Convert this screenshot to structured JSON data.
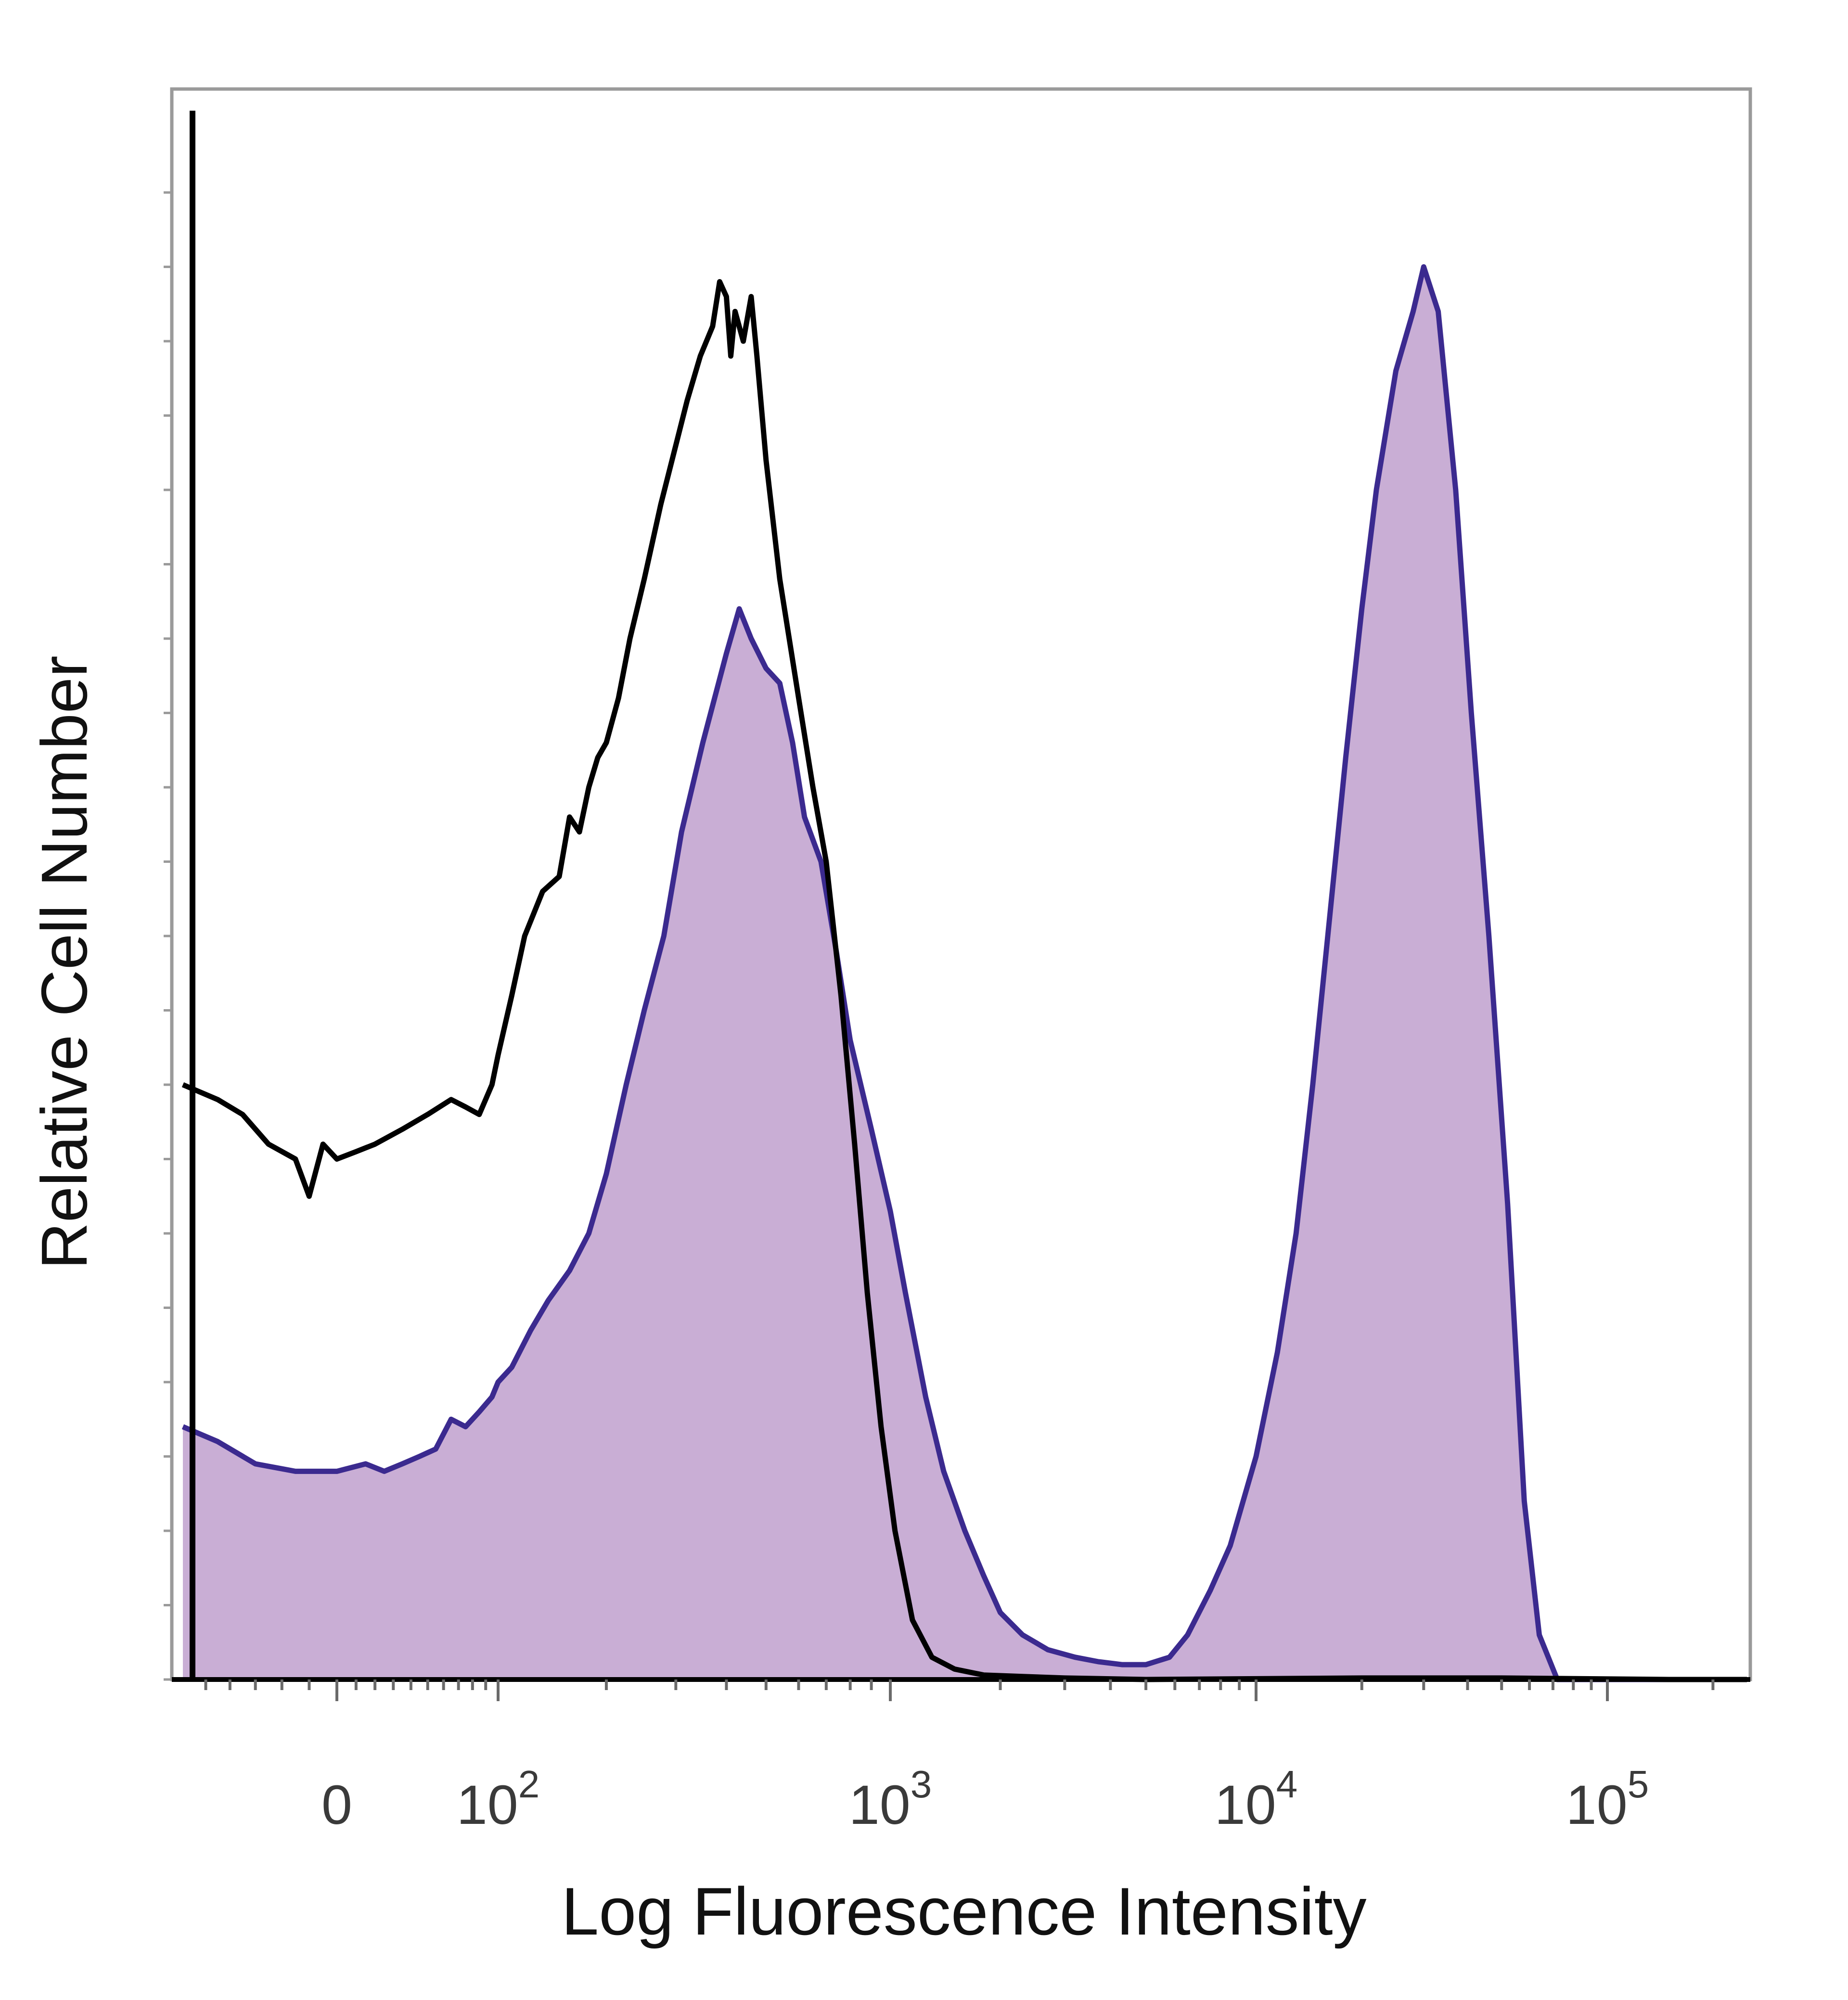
{
  "chart_data": {
    "type": "area",
    "title": "",
    "xlabel": "Log Fluorescence Intensity",
    "ylabel": "Relative Cell Number",
    "x_scale": "biexponential",
    "x_ticks": [
      {
        "value": 0,
        "base": "0",
        "exp": ""
      },
      {
        "value": 100,
        "base": "10",
        "exp": "2"
      },
      {
        "value": 1000,
        "base": "10",
        "exp": "3"
      },
      {
        "value": 10000,
        "base": "10",
        "exp": "4"
      },
      {
        "value": 100000,
        "base": "10",
        "exp": "5"
      }
    ],
    "ylim": [
      0,
      100
    ],
    "grid": false,
    "legend": "none",
    "series": [
      {
        "style": "filled",
        "fill_color": "#c9aed5",
        "line_color": "#3b2a8f",
        "points": [
          [
            -60,
            17
          ],
          [
            -45,
            16
          ],
          [
            -30,
            14.5
          ],
          [
            -15,
            14
          ],
          [
            0,
            14
          ],
          [
            15,
            14.5
          ],
          [
            25,
            14
          ],
          [
            35,
            14.5
          ],
          [
            45,
            15
          ],
          [
            55,
            15.5
          ],
          [
            65,
            17.5
          ],
          [
            75,
            17
          ],
          [
            85,
            18
          ],
          [
            95,
            19
          ],
          [
            100,
            20
          ],
          [
            110,
            21
          ],
          [
            125,
            23.5
          ],
          [
            140,
            25.5
          ],
          [
            160,
            27.5
          ],
          [
            180,
            30
          ],
          [
            200,
            34
          ],
          [
            225,
            40
          ],
          [
            250,
            45
          ],
          [
            280,
            50
          ],
          [
            310,
            57
          ],
          [
            350,
            63
          ],
          [
            400,
            69
          ],
          [
            430,
            72
          ],
          [
            460,
            70
          ],
          [
            500,
            68
          ],
          [
            540,
            67
          ],
          [
            580,
            63
          ],
          [
            620,
            58
          ],
          [
            680,
            55
          ],
          [
            740,
            49
          ],
          [
            800,
            43
          ],
          [
            900,
            37
          ],
          [
            1000,
            31.5
          ],
          [
            1100,
            26
          ],
          [
            1250,
            19
          ],
          [
            1400,
            14
          ],
          [
            1600,
            10
          ],
          [
            1800,
            7
          ],
          [
            2000,
            4.5
          ],
          [
            2300,
            3
          ],
          [
            2700,
            2
          ],
          [
            3200,
            1.5
          ],
          [
            3700,
            1.2
          ],
          [
            4300,
            1
          ],
          [
            5000,
            1
          ],
          [
            5800,
            1.5
          ],
          [
            6500,
            3
          ],
          [
            7500,
            6
          ],
          [
            8500,
            9
          ],
          [
            10000,
            15
          ],
          [
            11500,
            22
          ],
          [
            13000,
            30
          ],
          [
            14500,
            40
          ],
          [
            16000,
            50
          ],
          [
            18000,
            62
          ],
          [
            20000,
            72
          ],
          [
            22000,
            80
          ],
          [
            25000,
            88
          ],
          [
            28000,
            92
          ],
          [
            30000,
            95
          ],
          [
            33000,
            92
          ],
          [
            37000,
            80
          ],
          [
            41000,
            65
          ],
          [
            46000,
            50
          ],
          [
            52000,
            32
          ],
          [
            58000,
            12
          ],
          [
            64000,
            3
          ],
          [
            72000,
            0
          ],
          [
            90000,
            0
          ],
          [
            150000,
            0
          ],
          [
            250000,
            0
          ]
        ]
      },
      {
        "style": "line",
        "line_color": "#000000",
        "points": [
          [
            -60,
            40
          ],
          [
            -45,
            39
          ],
          [
            -35,
            38
          ],
          [
            -25,
            36
          ],
          [
            -15,
            35
          ],
          [
            -10,
            32.5
          ],
          [
            -5,
            36
          ],
          [
            0,
            35
          ],
          [
            10,
            35.5
          ],
          [
            20,
            36
          ],
          [
            35,
            37
          ],
          [
            50,
            38
          ],
          [
            65,
            39
          ],
          [
            75,
            38.5
          ],
          [
            85,
            38
          ],
          [
            95,
            40
          ],
          [
            100,
            42
          ],
          [
            110,
            46
          ],
          [
            120,
            50
          ],
          [
            135,
            53
          ],
          [
            150,
            54
          ],
          [
            160,
            58
          ],
          [
            170,
            57
          ],
          [
            180,
            60
          ],
          [
            190,
            62
          ],
          [
            200,
            63
          ],
          [
            215,
            66
          ],
          [
            230,
            70
          ],
          [
            250,
            74
          ],
          [
            275,
            79
          ],
          [
            300,
            83
          ],
          [
            320,
            86
          ],
          [
            345,
            89
          ],
          [
            370,
            91
          ],
          [
            385,
            94
          ],
          [
            400,
            93
          ],
          [
            410,
            89
          ],
          [
            420,
            92
          ],
          [
            440,
            90
          ],
          [
            460,
            93
          ],
          [
            475,
            89
          ],
          [
            500,
            82
          ],
          [
            540,
            74
          ],
          [
            600,
            66
          ],
          [
            650,
            60
          ],
          [
            700,
            55
          ],
          [
            760,
            46
          ],
          [
            820,
            36
          ],
          [
            880,
            26
          ],
          [
            950,
            17
          ],
          [
            1030,
            10
          ],
          [
            1150,
            4
          ],
          [
            1300,
            1.5
          ],
          [
            1500,
            0.7
          ],
          [
            1800,
            0.3
          ],
          [
            2300,
            0.2
          ],
          [
            3000,
            0.1
          ],
          [
            5000,
            0
          ],
          [
            20000,
            0.1
          ],
          [
            50000,
            0.1
          ],
          [
            150000,
            0
          ],
          [
            250000,
            0
          ]
        ]
      }
    ]
  }
}
